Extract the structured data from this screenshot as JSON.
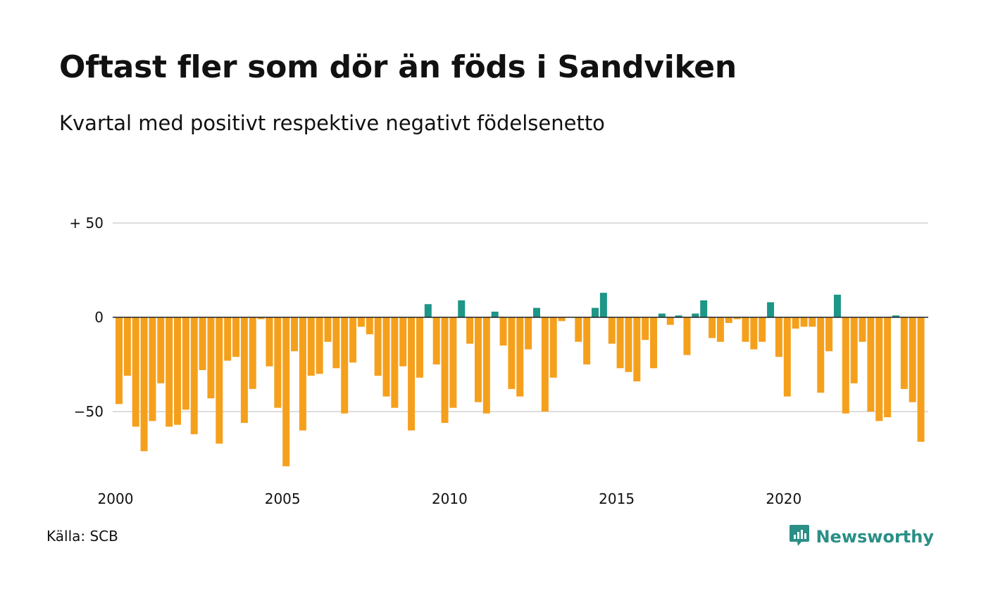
{
  "header": {
    "title": "Oftast fler som dör än föds i Sandviken",
    "subtitle": "Kvartal med positivt respektive negativt födelsenetto"
  },
  "footer": {
    "source": "Källa: SCB",
    "brand": "Newsworthy"
  },
  "colors": {
    "negative": "#f5a01c",
    "positive": "#1e9687",
    "grid": "#dddddd",
    "zero_line": "#222222",
    "brand": "#2a8f86"
  },
  "icons": {
    "brand_logo": "newsworthy-logo-icon"
  },
  "chart_data": {
    "type": "bar",
    "title": "Oftast fler som dör än föds i Sandviken",
    "subtitle": "Kvartal med positivt respektive negativt födelsenetto",
    "xlabel": "",
    "ylabel": "",
    "x_start": "2000 Q1",
    "x_tick_labels": [
      "2000",
      "2005",
      "2010",
      "2015",
      "2020"
    ],
    "y_ticks": [
      {
        "value": 50,
        "label": "+ 50"
      },
      {
        "value": 0,
        "label": "0"
      },
      {
        "value": -50,
        "label": "−50"
      }
    ],
    "ylim": [
      -80,
      50
    ],
    "grid": true,
    "legend": "none",
    "values": [
      -46,
      -31,
      -58,
      -71,
      -55,
      -35,
      -58,
      -57,
      -49,
      -62,
      -28,
      -43,
      -67,
      -23,
      -21,
      -56,
      -38,
      -1,
      -26,
      -48,
      -79,
      -18,
      -60,
      -31,
      -30,
      -13,
      -27,
      -51,
      -24,
      -5,
      -9,
      -31,
      -42,
      -48,
      -26,
      -60,
      -32,
      7,
      -25,
      -56,
      -48,
      9,
      -14,
      -45,
      -51,
      3,
      -15,
      -38,
      -42,
      -17,
      5,
      -50,
      -32,
      -2,
      0,
      -13,
      -25,
      5,
      13,
      -14,
      -27,
      -29,
      -34,
      -12,
      -27,
      2,
      -4,
      1,
      -20,
      2,
      9,
      -11,
      -13,
      -3,
      -1,
      -13,
      -17,
      -13,
      8,
      -21,
      -42,
      -6,
      -5,
      -5,
      -40,
      -18,
      12,
      -51,
      -35,
      -13,
      -50,
      -55,
      -53,
      1,
      -38,
      -45,
      -66
    ]
  }
}
